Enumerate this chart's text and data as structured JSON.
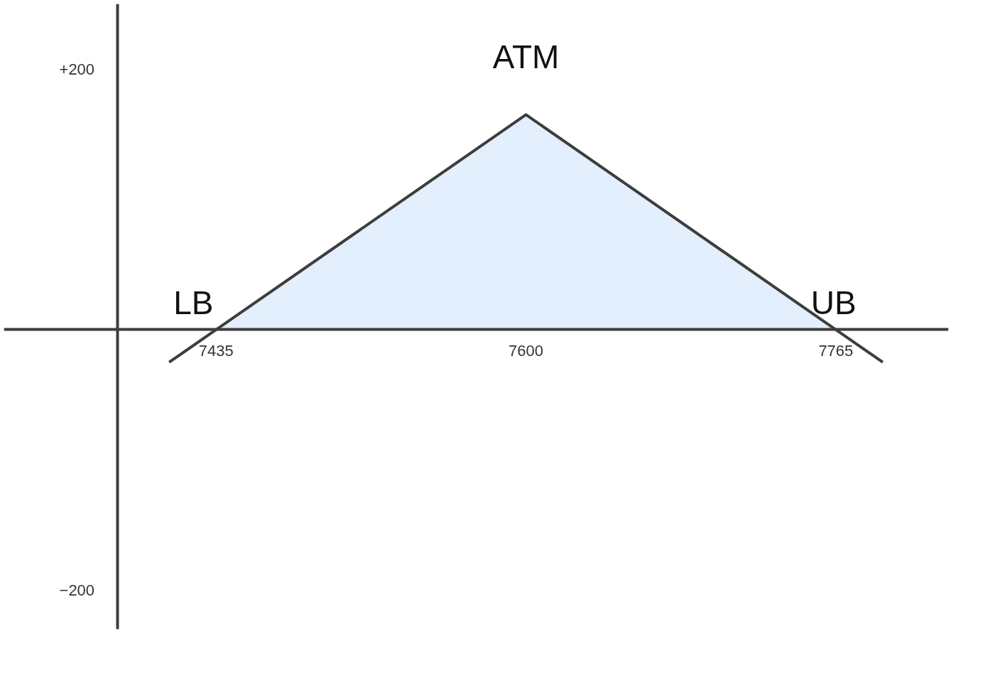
{
  "chart_data": {
    "type": "line",
    "annotations": [
      {
        "text": "LB",
        "x": 7435,
        "y": 0
      },
      {
        "text": "ATM",
        "x": 7600,
        "y": 165
      },
      {
        "text": "UB",
        "x": 7765,
        "y": 0
      }
    ],
    "series": [
      {
        "type": "area",
        "color": "#e3effc",
        "x": [
          7435,
          7600,
          7765
        ],
        "values": [
          0,
          165,
          0
        ]
      },
      {
        "color": "#3d3d3d",
        "x": [
          7410,
          7435,
          7600,
          7765,
          7790
        ],
        "values": [
          -25,
          0,
          165,
          0,
          -25
        ]
      }
    ],
    "xlim": [
      7322,
      7825
    ],
    "ylim": [
      -230,
      250
    ],
    "xticks": [
      7435,
      7600,
      7765
    ],
    "yticks": [
      {
        "value": 200,
        "label": "+200"
      },
      -200
    ],
    "grid": false,
    "line_style": "solid",
    "marker": "none"
  }
}
